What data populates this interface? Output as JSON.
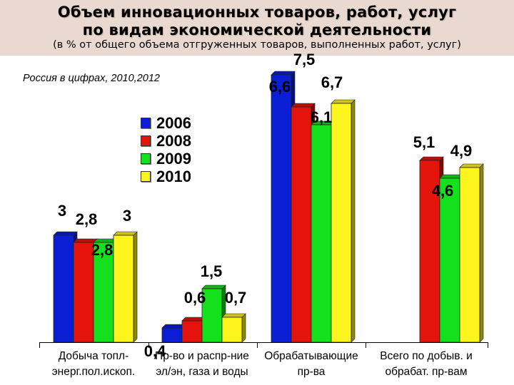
{
  "title_line1": "Объем инновационных товаров, работ, услуг",
  "title_line2": "по видам экономической деятельности",
  "subtitle": "(в % от общего объема отгруженных товаров, выполненных работ, услуг)",
  "source": "Россия в цифрах, 2010,2012",
  "chart_data": {
    "type": "bar",
    "categories": [
      [
        "Добыча топл-",
        "энерг.пол.ископ."
      ],
      [
        "Пр-во и распр-ние",
        "эл/эн, газа и воды"
      ],
      [
        "Обрабатывающие",
        "пр-ва"
      ],
      [
        "Всего по добыв. и",
        "обрабат. пр-вам"
      ]
    ],
    "series": [
      {
        "name": "2006",
        "color": "#0a1ed6",
        "values": [
          3,
          0.4,
          7.5,
          null
        ],
        "labels": [
          "3",
          "0,4",
          "7,5",
          ""
        ]
      },
      {
        "name": "2008",
        "color": "#e4140c",
        "values": [
          2.8,
          0.6,
          6.6,
          5.1
        ],
        "labels": [
          "2,8",
          "0,6",
          "6,6",
          "5,1"
        ]
      },
      {
        "name": "2009",
        "color": "#14e01e",
        "values": [
          2.8,
          1.5,
          6.1,
          4.6
        ],
        "labels": [
          "2,8",
          "1,5",
          "6,1",
          "4,6"
        ]
      },
      {
        "name": "2010",
        "color": "#fff51e",
        "values": [
          3,
          0.7,
          6.7,
          4.9
        ],
        "labels": [
          "3",
          "0,7",
          "6,7",
          "4,9"
        ]
      }
    ],
    "ylim": [
      0,
      8
    ],
    "legend": "inside-left",
    "grid": false
  }
}
